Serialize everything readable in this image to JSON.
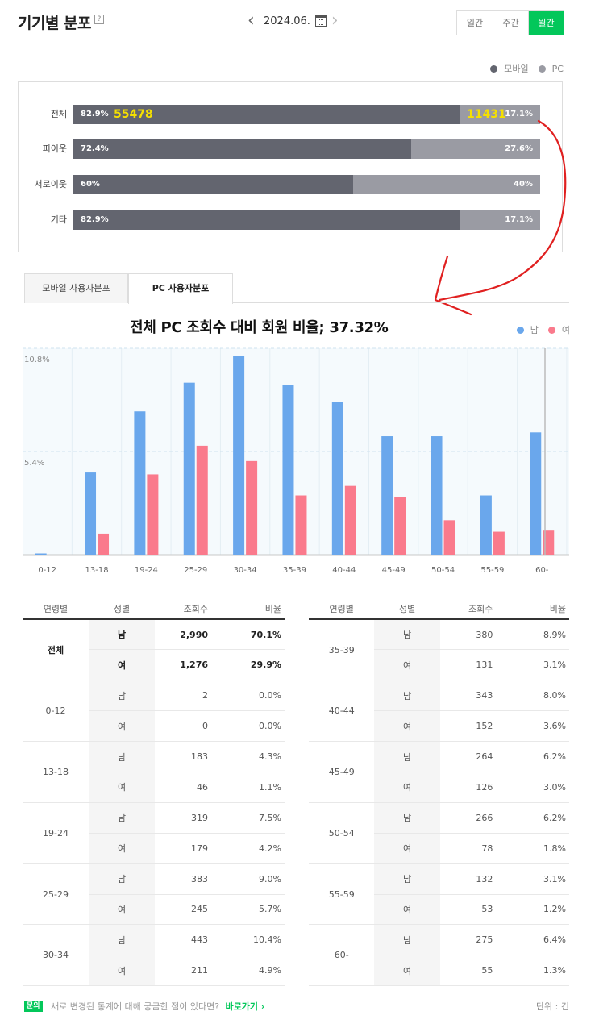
{
  "header": {
    "title": "기기별 분포",
    "help": "?",
    "date": "2024.06.",
    "prev_arrow": "‹",
    "next_arrow": "›",
    "tabs": [
      "일간",
      "주간",
      "월간"
    ],
    "active_tab": "월간"
  },
  "device_legend": [
    {
      "label": "모바일",
      "color": "#63656f"
    },
    {
      "label": "PC",
      "color": "#9a9ba3"
    }
  ],
  "device_rows": [
    {
      "label": "전체",
      "mobile_pct": "82.9%",
      "pc_pct": "17.1%",
      "mobile_share": 82.9,
      "mobile_count": "55478",
      "pc_count": "11431"
    },
    {
      "label": "피이웃",
      "mobile_pct": "72.4%",
      "pc_pct": "27.6%",
      "mobile_share": 72.4
    },
    {
      "label": "서로이웃",
      "mobile_pct": "60%",
      "pc_pct": "40%",
      "mobile_share": 60
    },
    {
      "label": "기타",
      "mobile_pct": "82.9%",
      "pc_pct": "17.1%",
      "mobile_share": 82.9
    }
  ],
  "dist_tabs": [
    "모바일 사용자분포",
    "PC 사용자분포"
  ],
  "active_dist_tab": "PC 사용자분포",
  "annotation": "전체 PC 조회수 대비 회원 비율; 37.32%",
  "gender_legend": [
    {
      "label": "남",
      "color": "#6aa7ec"
    },
    {
      "label": "여",
      "color": "#fa7a8c"
    }
  ],
  "chart_data": {
    "type": "bar",
    "categories": [
      "0-12",
      "13-18",
      "19-24",
      "25-29",
      "30-34",
      "35-39",
      "40-44",
      "45-49",
      "50-54",
      "55-59",
      "60-"
    ],
    "series": [
      {
        "name": "남",
        "color": "#6aa7ec",
        "values": [
          0.0,
          4.3,
          7.5,
          9.0,
          10.4,
          8.9,
          8.0,
          6.2,
          6.2,
          3.1,
          6.4
        ]
      },
      {
        "name": "여",
        "color": "#fa7a8c",
        "values": [
          0.0,
          1.1,
          4.2,
          5.7,
          4.9,
          3.1,
          3.6,
          3.0,
          1.8,
          1.2,
          1.3
        ]
      }
    ],
    "y_ticks": [
      "10.8%",
      "5.4%"
    ],
    "y_tick_values": [
      10.8,
      5.4
    ],
    "ylim": [
      0,
      10.8
    ],
    "grid": true
  },
  "table": {
    "headers": [
      "연령별",
      "성별",
      "조회수",
      "비율"
    ],
    "left": [
      {
        "age": "전체",
        "bold": true,
        "rows": [
          {
            "gender": "남",
            "count": "2,990",
            "ratio": "70.1%"
          },
          {
            "gender": "여",
            "count": "1,276",
            "ratio": "29.9%"
          }
        ]
      },
      {
        "age": "0-12",
        "rows": [
          {
            "gender": "남",
            "count": "2",
            "ratio": "0.0%"
          },
          {
            "gender": "여",
            "count": "0",
            "ratio": "0.0%"
          }
        ]
      },
      {
        "age": "13-18",
        "rows": [
          {
            "gender": "남",
            "count": "183",
            "ratio": "4.3%"
          },
          {
            "gender": "여",
            "count": "46",
            "ratio": "1.1%"
          }
        ]
      },
      {
        "age": "19-24",
        "rows": [
          {
            "gender": "남",
            "count": "319",
            "ratio": "7.5%"
          },
          {
            "gender": "여",
            "count": "179",
            "ratio": "4.2%"
          }
        ]
      },
      {
        "age": "25-29",
        "rows": [
          {
            "gender": "남",
            "count": "383",
            "ratio": "9.0%"
          },
          {
            "gender": "여",
            "count": "245",
            "ratio": "5.7%"
          }
        ]
      },
      {
        "age": "30-34",
        "rows": [
          {
            "gender": "남",
            "count": "443",
            "ratio": "10.4%"
          },
          {
            "gender": "여",
            "count": "211",
            "ratio": "4.9%"
          }
        ]
      }
    ],
    "right": [
      {
        "age": "35-39",
        "rows": [
          {
            "gender": "남",
            "count": "380",
            "ratio": "8.9%"
          },
          {
            "gender": "여",
            "count": "131",
            "ratio": "3.1%"
          }
        ]
      },
      {
        "age": "40-44",
        "rows": [
          {
            "gender": "남",
            "count": "343",
            "ratio": "8.0%"
          },
          {
            "gender": "여",
            "count": "152",
            "ratio": "3.6%"
          }
        ]
      },
      {
        "age": "45-49",
        "rows": [
          {
            "gender": "남",
            "count": "264",
            "ratio": "6.2%"
          },
          {
            "gender": "여",
            "count": "126",
            "ratio": "3.0%"
          }
        ]
      },
      {
        "age": "50-54",
        "rows": [
          {
            "gender": "남",
            "count": "266",
            "ratio": "6.2%"
          },
          {
            "gender": "여",
            "count": "78",
            "ratio": "1.8%"
          }
        ]
      },
      {
        "age": "55-59",
        "rows": [
          {
            "gender": "남",
            "count": "132",
            "ratio": "3.1%"
          },
          {
            "gender": "여",
            "count": "53",
            "ratio": "1.2%"
          }
        ]
      },
      {
        "age": "60-",
        "rows": [
          {
            "gender": "남",
            "count": "275",
            "ratio": "6.4%"
          },
          {
            "gender": "여",
            "count": "55",
            "ratio": "1.3%"
          }
        ]
      }
    ]
  },
  "footer": {
    "badge": "문의",
    "text": "새로 변경된 통계에 대해 궁금한 점이 있다면?",
    "link": "바로가기 ›",
    "unit": "단위 : 건"
  }
}
